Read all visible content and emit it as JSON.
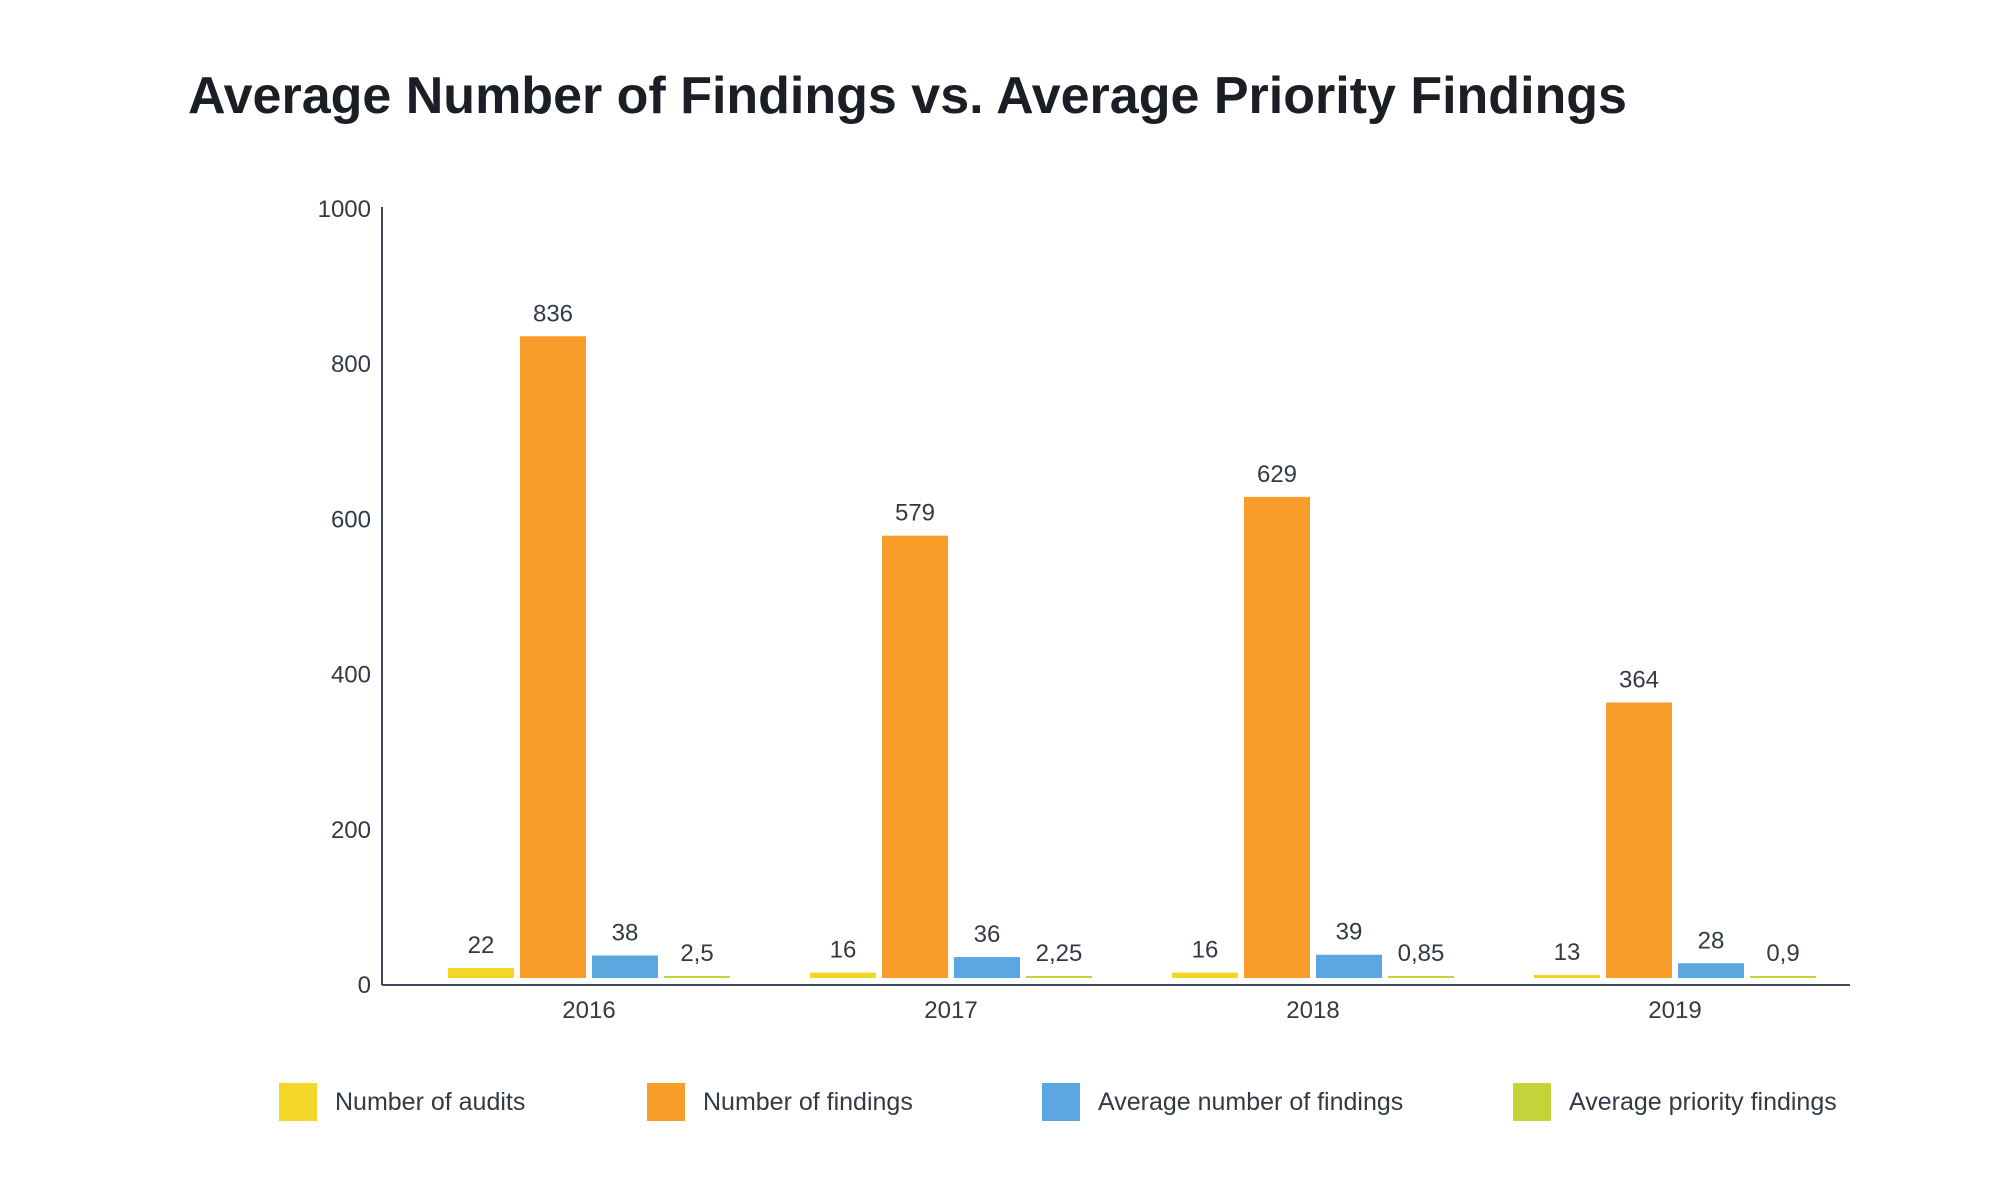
{
  "chart_data": {
    "type": "bar",
    "title": "Average Number of Findings vs. Average Priority Findings",
    "categories": [
      "2016",
      "2017",
      "2018",
      "2019"
    ],
    "series": [
      {
        "name": "Number of audits",
        "color": "#f2d729",
        "values": [
          22,
          16,
          16,
          13
        ],
        "labels": [
          "22",
          "16",
          "16",
          "13"
        ]
      },
      {
        "name": "Number of findings",
        "color": "#f89c2a",
        "values": [
          836,
          579,
          629,
          364
        ],
        "labels": [
          "836",
          "579",
          "629",
          "364"
        ]
      },
      {
        "name": "Average number of findings",
        "color": "#5aa8df",
        "values": [
          38,
          36,
          39,
          28
        ],
        "labels": [
          "38",
          "36",
          "39",
          "28"
        ]
      },
      {
        "name": "Average priority findings",
        "color": "#c3d33a",
        "values": [
          2.5,
          2.25,
          0.85,
          0.9
        ],
        "labels": [
          "2,5",
          "2,25",
          "0,85",
          "0,9"
        ]
      }
    ],
    "yticks": [
      0,
      200,
      400,
      600,
      800,
      1000
    ],
    "ylim": [
      0,
      1000
    ],
    "xlabel": "",
    "ylabel": "",
    "grid": false,
    "legend_position": "bottom"
  }
}
